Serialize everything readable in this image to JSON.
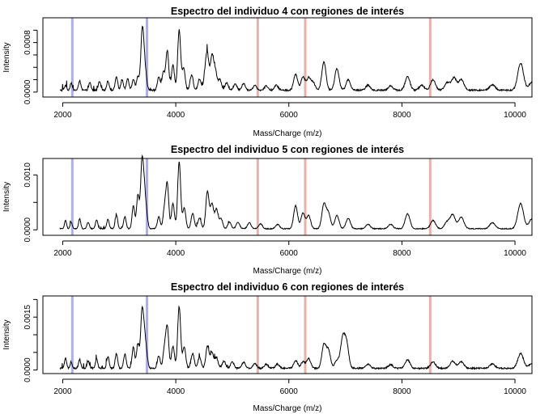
{
  "chart_data": [
    {
      "type": "line",
      "title": "Espectro del individuo 4 con regiones de interés",
      "xlabel": "Mass/Charge (m/z)",
      "ylabel": "Intensity",
      "xlim": [
        1650,
        10300
      ],
      "ylim": [
        -8e-05,
        0.0012
      ],
      "xticks": [
        2000,
        4000,
        6000,
        8000,
        10000
      ],
      "yticks": [
        0.0,
        0.0008
      ],
      "yticks_unlabeled": [
        0.0002,
        0.0004,
        0.0006,
        0.001
      ],
      "ytick_labels": [
        "0.0000",
        "0.0008"
      ],
      "grid": false,
      "series": [
        {
          "baseline": 3e-05,
          "peaks": [
            [
              2050,
              8e-05
            ],
            [
              2150,
              0.00012
            ],
            [
              2300,
              0.00016
            ],
            [
              2480,
              0.00012
            ],
            [
              2650,
              0.00014
            ],
            [
              2800,
              0.00015
            ],
            [
              2950,
              0.00022
            ],
            [
              3050,
              0.00017
            ],
            [
              3150,
              0.00019
            ],
            [
              3250,
              0.00018
            ],
            [
              3330,
              0.00022
            ],
            [
              3400,
              0.00072
            ],
            [
              3430,
              0.00052
            ],
            [
              3470,
              0.0002
            ],
            [
              3700,
              0.00021
            ],
            [
              3780,
              0.00028
            ],
            [
              3850,
              0.00064
            ],
            [
              3950,
              0.00041
            ],
            [
              4060,
              0.00097
            ],
            [
              4140,
              0.00035
            ],
            [
              4280,
              0.00025
            ],
            [
              4420,
              0.00018
            ],
            [
              4520,
              0.00022
            ],
            [
              4560,
              0.00052
            ],
            [
              4640,
              0.00054
            ],
            [
              4700,
              0.0003
            ],
            [
              4780,
              0.00017
            ],
            [
              4900,
              0.00012
            ],
            [
              5050,
              0.0001
            ],
            [
              5200,
              0.00011
            ],
            [
              5400,
              8e-05
            ],
            [
              5600,
              7e-05
            ],
            [
              5780,
              8e-05
            ],
            [
              6120,
              0.00026
            ],
            [
              6250,
              0.00022
            ],
            [
              6350,
              0.0002
            ],
            [
              6430,
              0.00012
            ],
            [
              6620,
              0.00046
            ],
            [
              6850,
              0.00035
            ],
            [
              7050,
              0.00017
            ],
            [
              7400,
              8e-05
            ],
            [
              7800,
              7e-05
            ],
            [
              8100,
              0.00022
            ],
            [
              8350,
              8e-05
            ],
            [
              8550,
              0.00017
            ],
            [
              8800,
              0.00012
            ],
            [
              8920,
              0.0002
            ],
            [
              9050,
              0.00017
            ],
            [
              9600,
              9e-05
            ],
            [
              10100,
              0.00044
            ],
            [
              10300,
              0.00013
            ]
          ]
        }
      ],
      "regions": {
        "blue": [
          2170,
          3490
        ],
        "red": [
          5450,
          6290,
          8500
        ],
        "colors": {
          "blue": "#aeaee8",
          "red": "#eab0ac"
        }
      }
    },
    {
      "type": "line",
      "title": "Espectro del individuo 5 con regiones de interés",
      "xlabel": "Mass/Charge (m/z)",
      "ylabel": "Intensity",
      "xlim": [
        1650,
        10300
      ],
      "ylim": [
        -0.0001,
        0.0013
      ],
      "xticks": [
        2000,
        4000,
        6000,
        8000,
        10000
      ],
      "yticks": [
        0.0,
        0.001
      ],
      "yticks_unlabeled": [
        0.0005
      ],
      "ytick_labels": [
        "0.0000",
        "0.0010"
      ],
      "grid": false,
      "series": [
        {
          "baseline": 2e-05,
          "peaks": [
            [
              2050,
              0.00015
            ],
            [
              2150,
              0.00012
            ],
            [
              2300,
              0.00018
            ],
            [
              2450,
              0.00012
            ],
            [
              2600,
              0.00016
            ],
            [
              2800,
              0.00017
            ],
            [
              2950,
              0.00025
            ],
            [
              3100,
              0.00022
            ],
            [
              3250,
              0.00042
            ],
            [
              3330,
              0.00062
            ],
            [
              3400,
              0.00112
            ],
            [
              3440,
              0.00066
            ],
            [
              3480,
              0.00026
            ],
            [
              3700,
              0.00022
            ],
            [
              3800,
              0.00035
            ],
            [
              3850,
              0.0008
            ],
            [
              3950,
              0.00046
            ],
            [
              4060,
              0.00122
            ],
            [
              4150,
              0.00038
            ],
            [
              4300,
              0.00028
            ],
            [
              4420,
              0.0002
            ],
            [
              4560,
              0.00068
            ],
            [
              4640,
              0.00045
            ],
            [
              4720,
              0.00035
            ],
            [
              4800,
              0.00018
            ],
            [
              4950,
              0.00012
            ],
            [
              5100,
              0.00012
            ],
            [
              5300,
              0.00011
            ],
            [
              5500,
              9e-05
            ],
            [
              5800,
              8e-05
            ],
            [
              6120,
              0.00042
            ],
            [
              6250,
              0.00028
            ],
            [
              6350,
              0.00024
            ],
            [
              6620,
              0.00044
            ],
            [
              6700,
              0.00028
            ],
            [
              6850,
              0.00024
            ],
            [
              7050,
              0.00019
            ],
            [
              7400,
              8e-05
            ],
            [
              7800,
              8e-05
            ],
            [
              8100,
              0.00027
            ],
            [
              8550,
              0.00015
            ],
            [
              8800,
              0.00012
            ],
            [
              8900,
              0.00025
            ],
            [
              9050,
              0.00021
            ],
            [
              9600,
              0.00011
            ],
            [
              10100,
              0.00046
            ],
            [
              10300,
              0.00018
            ]
          ]
        }
      ],
      "regions": {
        "blue": [
          2170,
          3490
        ],
        "red": [
          5450,
          6290,
          8500
        ],
        "colors": {
          "blue": "#aeaee8",
          "red": "#eab0ac"
        }
      }
    },
    {
      "type": "line",
      "title": "Espectro del individuo 6 con regiones de interés",
      "xlabel": "Mass/Charge (m/z)",
      "ylabel": "Intensity",
      "xlim": [
        1650,
        10300
      ],
      "ylim": [
        -0.0001,
        0.0021
      ],
      "xticks": [
        2000,
        4000,
        6000,
        8000,
        10000
      ],
      "yticks": [
        0.0,
        0.0015
      ],
      "yticks_unlabeled": [
        0.0005,
        0.001,
        0.002
      ],
      "ytick_labels": [
        "0.0000",
        "0.0015"
      ],
      "grid": false,
      "series": [
        {
          "baseline": 5e-05,
          "peaks": [
            [
              2050,
              0.00028
            ],
            [
              2150,
              0.00018
            ],
            [
              2300,
              0.00025
            ],
            [
              2450,
              0.0002
            ],
            [
              2600,
              0.00026
            ],
            [
              2800,
              0.00033
            ],
            [
              2950,
              0.00042
            ],
            [
              3100,
              0.0004
            ],
            [
              3250,
              0.0006
            ],
            [
              3330,
              0.0007
            ],
            [
              3400,
              0.00145
            ],
            [
              3440,
              0.0009
            ],
            [
              3480,
              0.0004
            ],
            [
              3700,
              0.00035
            ],
            [
              3800,
              0.00055
            ],
            [
              3850,
              0.00115
            ],
            [
              3950,
              0.00062
            ],
            [
              4060,
              0.00175
            ],
            [
              4150,
              0.0006
            ],
            [
              4300,
              0.00042
            ],
            [
              4420,
              0.00032
            ],
            [
              4560,
              0.00062
            ],
            [
              4640,
              0.00045
            ],
            [
              4720,
              0.0003
            ],
            [
              4850,
              0.0002
            ],
            [
              5000,
              0.00018
            ],
            [
              5200,
              0.00017
            ],
            [
              5400,
              0.00014
            ],
            [
              5600,
              0.00012
            ],
            [
              5800,
              0.00012
            ],
            [
              6120,
              0.00022
            ],
            [
              6250,
              0.00018
            ],
            [
              6350,
              0.00028
            ],
            [
              6620,
              0.00065
            ],
            [
              6700,
              0.0005
            ],
            [
              6850,
              0.00022
            ],
            [
              6950,
              0.0008
            ],
            [
              7020,
              0.0007
            ],
            [
              7400,
              0.00012
            ],
            [
              7800,
              0.0001
            ],
            [
              8100,
              0.00024
            ],
            [
              8550,
              0.00018
            ],
            [
              8900,
              0.0002
            ],
            [
              9050,
              0.00018
            ],
            [
              9600,
              0.00012
            ],
            [
              10100,
              0.00042
            ],
            [
              10300,
              0.00014
            ]
          ]
        }
      ],
      "regions": {
        "blue": [
          2170,
          3490
        ],
        "red": [
          5450,
          6290,
          8500
        ],
        "colors": {
          "blue": "#aeaee8",
          "red": "#eab0ac"
        }
      }
    }
  ]
}
